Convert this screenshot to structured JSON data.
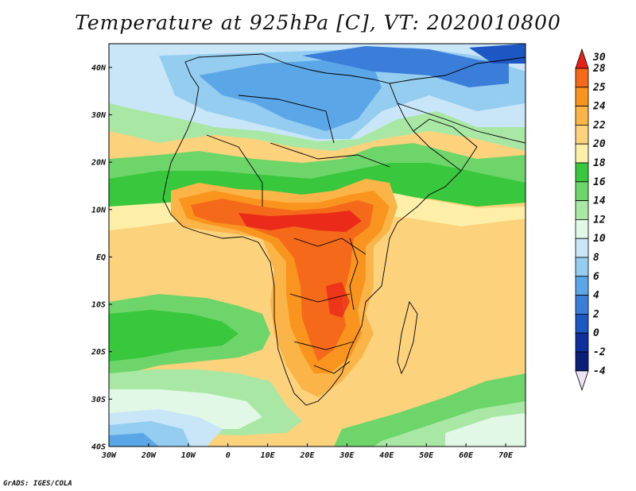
{
  "title": "Temperature at 925hPa [C], VT: 2020010800",
  "credit": "GrADS: IGES/COLA",
  "map": {
    "region": "Africa",
    "projection": "lat-lon",
    "variable": "Temperature at 925hPa",
    "units": "C",
    "valid_time": "2020010800",
    "lat_ticks": [
      "40N",
      "30N",
      "20N",
      "10N",
      "EQ",
      "10S",
      "20S",
      "30S",
      "40S"
    ],
    "lon_ticks": [
      "30W",
      "20W",
      "10W",
      "0",
      "10E",
      "20E",
      "30E",
      "40E",
      "50E",
      "60E",
      "70E"
    ],
    "lon_range": [
      -30,
      75
    ],
    "lat_range": [
      -40,
      45
    ]
  },
  "colorbar": {
    "labels": [
      "30",
      "28",
      "25",
      "24",
      "22",
      "20",
      "18",
      "16",
      "14",
      "12",
      "10",
      "8",
      "6",
      "4",
      "2",
      "0",
      "-2",
      "-4"
    ],
    "colors": [
      "#e8201a",
      "#f46a1a",
      "#f9951f",
      "#fbb447",
      "#fcd27c",
      "#fdeea8",
      "#39c73d",
      "#6ed56a",
      "#a9e8a4",
      "#e2f8e6",
      "#c8e6f8",
      "#94cdf0",
      "#5aa6e6",
      "#3a7ed9",
      "#1c57c4",
      "#0e2f9c",
      "#0b1f78",
      "#ece2f4"
    ]
  }
}
